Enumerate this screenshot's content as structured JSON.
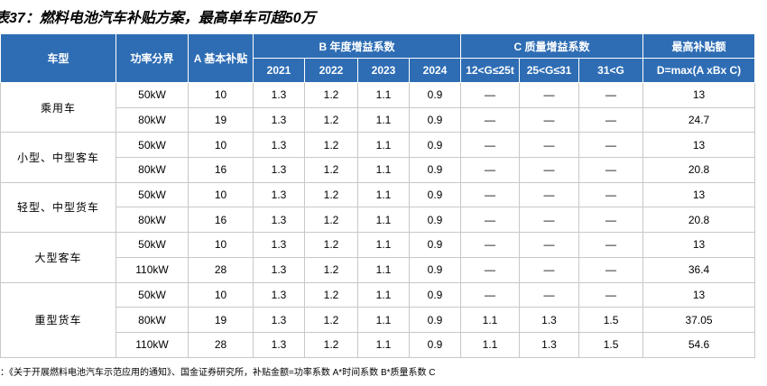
{
  "title": "表37：燃料电池汽车补贴方案，最高单车可超50万",
  "header": {
    "vehicle_type": "车型",
    "power_tier": "功率分界",
    "coef_a": "A 基本补贴",
    "year_group": "B 年度增益系数",
    "years": [
      "2021",
      "2022",
      "2023",
      "2024"
    ],
    "mass_group": "C 质量增益系数",
    "mass": [
      "12<G≤25t",
      "25<G≤31",
      "31<G"
    ],
    "max": [
      "最高补贴额",
      "D=max(A xBx C)"
    ]
  },
  "groups": [
    {
      "name": "乘用车",
      "rows": [
        [
          "50kW",
          "10",
          "1.3",
          "1.2",
          "1.1",
          "0.9",
          "—",
          "—",
          "—",
          "13"
        ],
        [
          "80kW",
          "19",
          "1.3",
          "1.2",
          "1.1",
          "0.9",
          "—",
          "—",
          "—",
          "24.7"
        ]
      ]
    },
    {
      "name": "小型、中型客车",
      "rows": [
        [
          "50kW",
          "10",
          "1.3",
          "1.2",
          "1.1",
          "0.9",
          "—",
          "—",
          "—",
          "13"
        ],
        [
          "80kW",
          "16",
          "1.3",
          "1.2",
          "1.1",
          "0.9",
          "—",
          "—",
          "—",
          "20.8"
        ]
      ]
    },
    {
      "name": "轻型、中型货车",
      "rows": [
        [
          "50kW",
          "10",
          "1.3",
          "1.2",
          "1.1",
          "0.9",
          "—",
          "—",
          "—",
          "13"
        ],
        [
          "80kW",
          "16",
          "1.3",
          "1.2",
          "1.1",
          "0.9",
          "—",
          "—",
          "—",
          "20.8"
        ]
      ]
    },
    {
      "name": "大型客车",
      "rows": [
        [
          "50kW",
          "10",
          "1.3",
          "1.2",
          "1.1",
          "0.9",
          "—",
          "—",
          "—",
          "13"
        ],
        [
          "110kW",
          "28",
          "1.3",
          "1.2",
          "1.1",
          "0.9",
          "—",
          "—",
          "—",
          "36.4"
        ]
      ]
    },
    {
      "name": "重型货车",
      "rows": [
        [
          "50kW",
          "10",
          "1.3",
          "1.2",
          "1.1",
          "0.9",
          "—",
          "—",
          "—",
          "13"
        ],
        [
          "80kW",
          "19",
          "1.3",
          "1.2",
          "1.1",
          "0.9",
          "1.1",
          "1.3",
          "1.5",
          "37.05"
        ],
        [
          "110kW",
          "28",
          "1.3",
          "1.2",
          "1.1",
          "0.9",
          "1.1",
          "1.3",
          "1.5",
          "54.6"
        ]
      ]
    }
  ],
  "footer": "：《关于开展燃料电池汽车示范应用的通知》、国金证券研究所，补贴金额=功率系数 A*时间系数 B*质量系数 C"
}
